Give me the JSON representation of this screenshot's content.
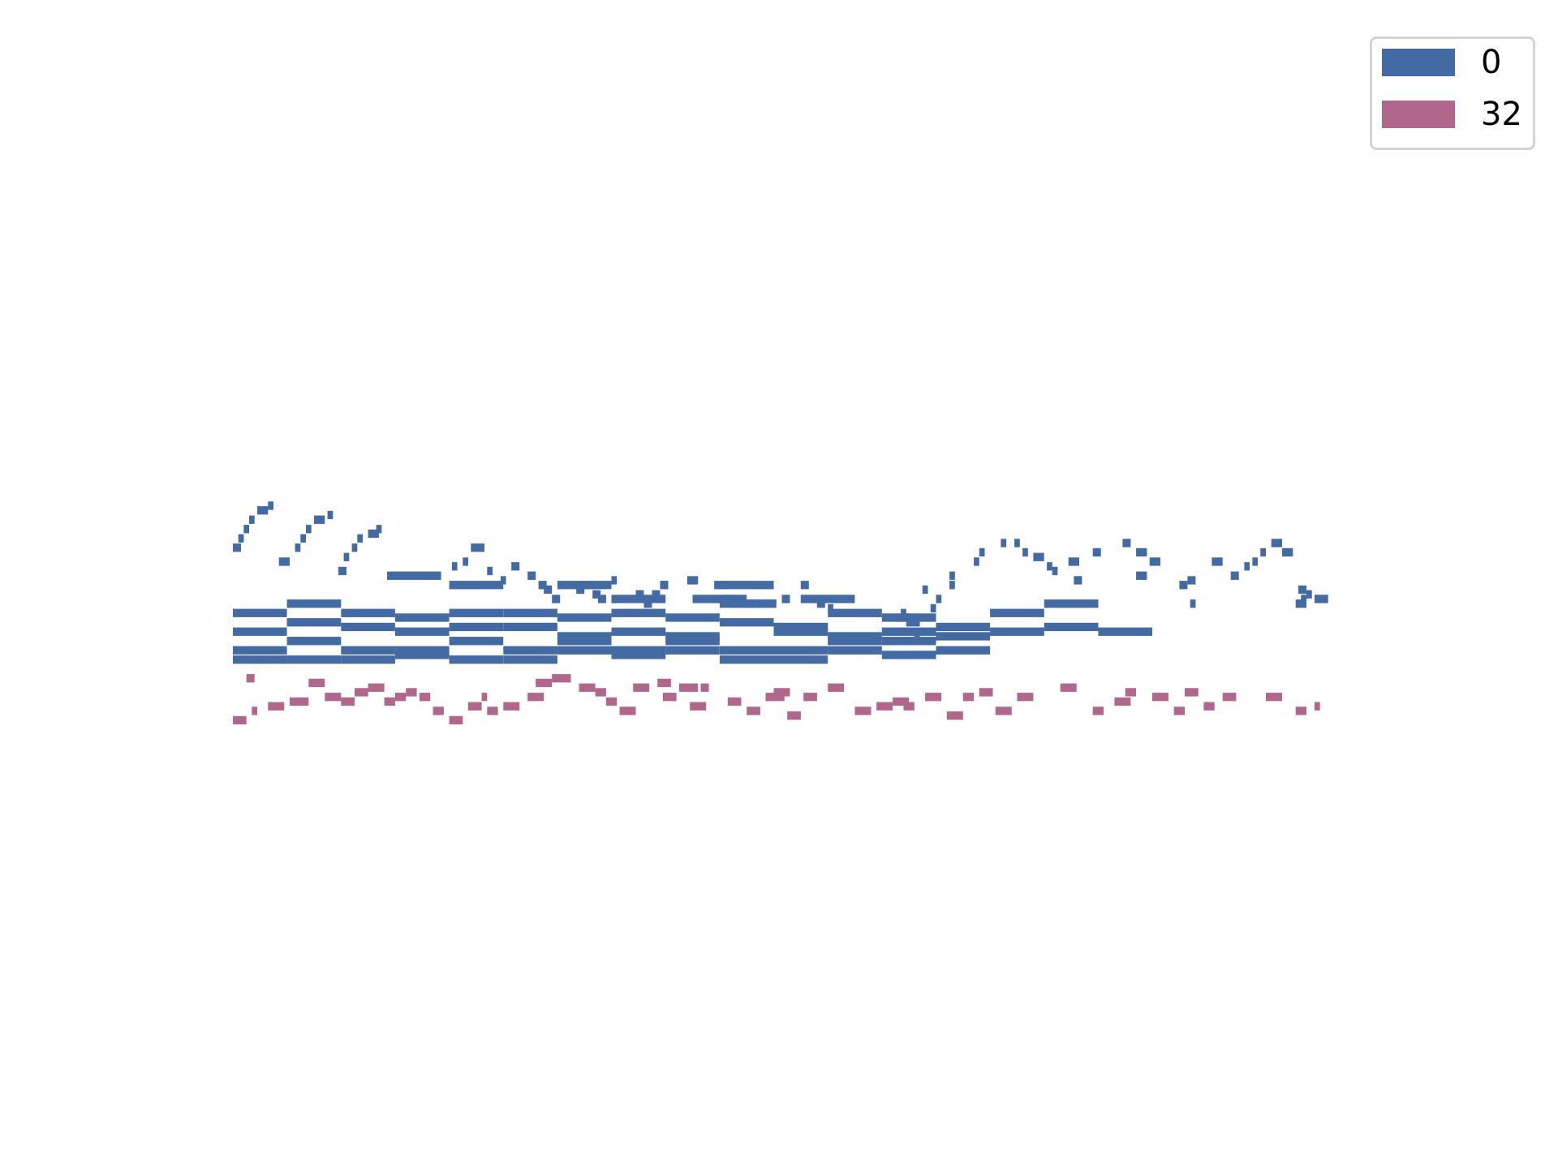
{
  "chart_data": {
    "type": "piano-roll",
    "title": "",
    "xlabel": "",
    "ylabel": "",
    "axes_visible": false,
    "grid": false,
    "legend_position": "top-right",
    "xlim": [
      0,
      400
    ],
    "ylim": [
      0,
      100
    ],
    "series": [
      {
        "name": "0",
        "color": "#436aa3",
        "notes": [
          [
            0,
            20,
            59
          ],
          [
            20,
            40,
            61
          ],
          [
            40,
            60,
            59
          ],
          [
            60,
            80,
            58
          ],
          [
            80,
            100,
            59
          ],
          [
            100,
            120,
            59
          ],
          [
            120,
            140,
            58
          ],
          [
            140,
            160,
            59
          ],
          [
            160,
            180,
            58
          ],
          [
            180,
            200,
            61
          ],
          [
            200,
            220,
            56
          ],
          [
            220,
            240,
            59
          ],
          [
            240,
            260,
            58
          ],
          [
            260,
            280,
            56
          ],
          [
            280,
            300,
            59
          ],
          [
            300,
            320,
            61
          ],
          [
            0,
            20,
            55
          ],
          [
            20,
            40,
            57
          ],
          [
            40,
            60,
            56
          ],
          [
            60,
            80,
            55
          ],
          [
            80,
            100,
            56
          ],
          [
            100,
            120,
            56
          ],
          [
            120,
            140,
            54
          ],
          [
            140,
            160,
            55
          ],
          [
            160,
            170,
            54
          ],
          [
            170,
            180,
            54
          ],
          [
            180,
            200,
            57
          ],
          [
            200,
            220,
            55
          ],
          [
            220,
            240,
            54
          ],
          [
            240,
            260,
            55
          ],
          [
            260,
            280,
            54
          ],
          [
            280,
            300,
            55
          ],
          [
            300,
            320,
            56
          ],
          [
            320,
            340,
            55
          ],
          [
            0,
            20,
            51
          ],
          [
            20,
            40,
            53
          ],
          [
            40,
            60,
            51
          ],
          [
            60,
            80,
            51
          ],
          [
            80,
            100,
            53
          ],
          [
            100,
            120,
            51
          ],
          [
            120,
            140,
            53
          ],
          [
            140,
            160,
            51
          ],
          [
            160,
            180,
            53
          ],
          [
            180,
            200,
            51
          ],
          [
            200,
            220,
            51
          ],
          [
            220,
            240,
            53
          ],
          [
            240,
            260,
            53
          ],
          [
            260,
            280,
            51
          ],
          [
            0,
            20,
            49
          ],
          [
            20,
            40,
            49
          ],
          [
            40,
            60,
            49
          ],
          [
            60,
            80,
            50
          ],
          [
            80,
            100,
            49
          ],
          [
            100,
            120,
            49
          ],
          [
            120,
            140,
            51
          ],
          [
            140,
            160,
            50
          ],
          [
            160,
            180,
            51
          ],
          [
            180,
            200,
            49
          ],
          [
            200,
            220,
            49
          ],
          [
            220,
            240,
            51
          ],
          [
            240,
            260,
            50
          ],
          [
            57,
            77,
            67
          ],
          [
            80,
            100,
            65
          ],
          [
            120,
            140,
            65
          ],
          [
            140,
            160,
            62
          ],
          [
            170,
            190,
            62
          ],
          [
            180,
            200,
            65
          ],
          [
            210,
            230,
            62
          ],
          [
            0,
            3,
            73
          ],
          [
            2,
            4,
            75
          ],
          [
            4,
            6,
            77
          ],
          [
            6,
            8,
            79
          ],
          [
            9,
            13,
            81
          ],
          [
            13,
            15,
            82
          ],
          [
            17,
            21,
            70
          ],
          [
            23,
            25,
            73
          ],
          [
            25,
            27,
            75
          ],
          [
            27,
            29,
            77
          ],
          [
            30,
            34,
            79
          ],
          [
            35,
            37,
            80
          ],
          [
            39,
            42,
            68
          ],
          [
            41,
            43,
            71
          ],
          [
            44,
            46,
            73
          ],
          [
            46,
            48,
            75
          ],
          [
            50,
            54,
            76
          ],
          [
            53,
            55,
            77
          ],
          [
            88,
            93,
            73
          ],
          [
            81,
            83,
            69
          ],
          [
            85,
            87,
            70
          ],
          [
            94,
            96,
            68
          ],
          [
            99,
            101,
            66
          ],
          [
            103,
            106,
            69
          ],
          [
            109,
            112,
            67
          ],
          [
            113,
            116,
            65
          ],
          [
            115,
            118,
            64
          ],
          [
            118,
            121,
            62
          ],
          [
            127,
            130,
            64
          ],
          [
            129,
            132,
            65
          ],
          [
            133,
            136,
            63
          ],
          [
            135,
            138,
            62
          ],
          [
            140,
            142,
            66
          ],
          [
            149,
            152,
            63
          ],
          [
            152,
            155,
            61
          ],
          [
            155,
            158,
            63
          ],
          [
            158,
            161,
            65
          ],
          [
            168,
            172,
            66
          ],
          [
            178,
            182,
            65
          ],
          [
            182,
            186,
            62
          ],
          [
            185,
            188,
            61
          ],
          [
            190,
            193,
            61
          ],
          [
            198,
            201,
            61
          ],
          [
            203,
            206,
            62
          ],
          [
            210,
            213,
            65
          ],
          [
            216,
            219,
            61
          ],
          [
            220,
            222,
            60
          ],
          [
            255,
            257,
            64
          ],
          [
            246,
            250,
            58
          ],
          [
            247,
            249,
            59
          ],
          [
            249,
            251,
            57
          ],
          [
            251,
            254,
            57
          ],
          [
            252,
            254,
            54
          ],
          [
            258,
            260,
            60
          ],
          [
            260,
            262,
            62
          ],
          [
            265,
            267,
            65
          ],
          [
            265,
            267,
            67
          ],
          [
            274,
            276,
            70
          ],
          [
            276,
            278,
            72
          ],
          [
            284,
            286,
            74
          ],
          [
            289,
            291,
            74
          ],
          [
            292,
            294,
            72
          ],
          [
            296,
            300,
            71
          ],
          [
            301,
            303,
            69
          ],
          [
            303,
            305,
            68
          ],
          [
            309,
            313,
            70
          ],
          [
            311,
            314,
            66
          ],
          [
            318,
            321,
            72
          ],
          [
            329,
            332,
            74
          ],
          [
            334,
            338,
            72
          ],
          [
            334,
            338,
            67
          ],
          [
            339,
            343,
            70
          ],
          [
            350,
            353,
            65
          ],
          [
            353,
            356,
            66
          ],
          [
            354,
            356,
            61
          ],
          [
            362,
            366,
            70
          ],
          [
            369,
            372,
            67
          ],
          [
            374,
            376,
            69
          ],
          [
            377,
            379,
            70
          ],
          [
            380,
            382,
            72
          ],
          [
            384,
            388,
            74
          ],
          [
            388,
            392,
            72
          ],
          [
            393,
            397,
            61
          ],
          [
            395,
            397,
            62
          ],
          [
            397,
            399,
            63
          ],
          [
            400,
            405,
            62
          ],
          [
            394,
            397,
            64
          ]
        ]
      },
      {
        "name": "32",
        "color": "#b0678b",
        "notes": [
          [
            0,
            5,
            36
          ],
          [
            5,
            8,
            45
          ],
          [
            7,
            9,
            38
          ],
          [
            13,
            19,
            39
          ],
          [
            21,
            28,
            40
          ],
          [
            28,
            34,
            44
          ],
          [
            34,
            40,
            41
          ],
          [
            40,
            45,
            40
          ],
          [
            45,
            50,
            42
          ],
          [
            50,
            56,
            43
          ],
          [
            56,
            60,
            40
          ],
          [
            60,
            64,
            41
          ],
          [
            64,
            68,
            42
          ],
          [
            69,
            73,
            41
          ],
          [
            74,
            78,
            38
          ],
          [
            80,
            85,
            36
          ],
          [
            87,
            92,
            39
          ],
          [
            92,
            94,
            41
          ],
          [
            94,
            98,
            38
          ],
          [
            100,
            106,
            39
          ],
          [
            109,
            115,
            41
          ],
          [
            112,
            118,
            44
          ],
          [
            118,
            125,
            45
          ],
          [
            128,
            134,
            43
          ],
          [
            134,
            138,
            42
          ],
          [
            138,
            142,
            40
          ],
          [
            143,
            149,
            38
          ],
          [
            148,
            154,
            43
          ],
          [
            157,
            162,
            44
          ],
          [
            159,
            164,
            41
          ],
          [
            165,
            172,
            43
          ],
          [
            169,
            175,
            39
          ],
          [
            173,
            176,
            43
          ],
          [
            183,
            188,
            40
          ],
          [
            190,
            195,
            38
          ],
          [
            197,
            204,
            41
          ],
          [
            200,
            206,
            42
          ],
          [
            205,
            210,
            37
          ],
          [
            211,
            216,
            41
          ],
          [
            220,
            226,
            43
          ],
          [
            230,
            236,
            38
          ],
          [
            238,
            244,
            39
          ],
          [
            244,
            250,
            40
          ],
          [
            248,
            252,
            39
          ],
          [
            256,
            262,
            41
          ],
          [
            264,
            270,
            37
          ],
          [
            270,
            274,
            41
          ],
          [
            276,
            281,
            42
          ],
          [
            282,
            288,
            38
          ],
          [
            290,
            296,
            41
          ],
          [
            306,
            312,
            43
          ],
          [
            318,
            322,
            38
          ],
          [
            326,
            332,
            40
          ],
          [
            330,
            334,
            42
          ],
          [
            340,
            346,
            41
          ],
          [
            348,
            352,
            38
          ],
          [
            352,
            357,
            42
          ],
          [
            359,
            363,
            39
          ],
          [
            366,
            371,
            41
          ],
          [
            382,
            388,
            41
          ],
          [
            393,
            397,
            38
          ],
          [
            400,
            402,
            39
          ]
        ]
      }
    ]
  },
  "legend": {
    "items": [
      {
        "label": "0",
        "color": "#436aa3"
      },
      {
        "label": "32",
        "color": "#b0678b"
      }
    ]
  }
}
